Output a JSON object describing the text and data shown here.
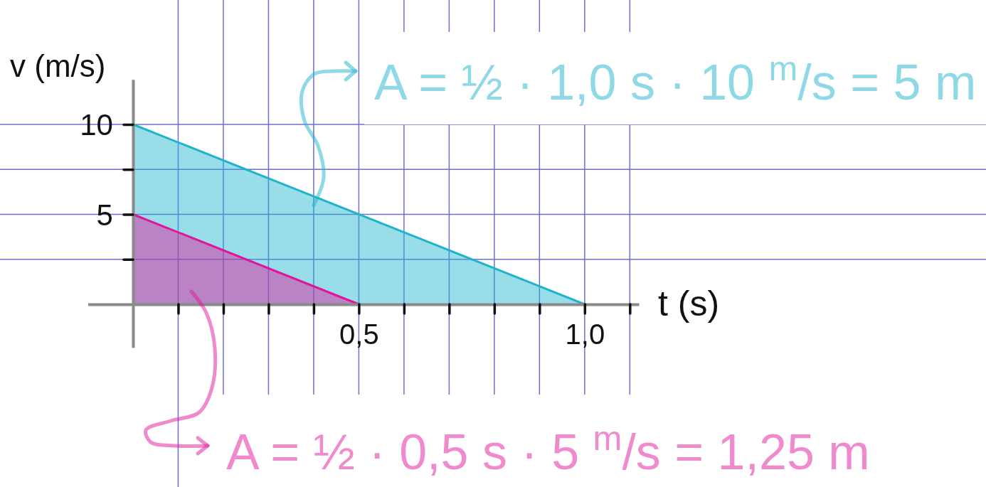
{
  "chart_data": {
    "type": "area",
    "xlabel": "t (s)",
    "ylabel": "v (m/s)",
    "xlim": [
      -0.1,
      1.12
    ],
    "ylim": [
      -2.4,
      12.5
    ],
    "xticks": [
      {
        "value": 0.1,
        "label": null
      },
      {
        "value": 0.2,
        "label": null
      },
      {
        "value": 0.3,
        "label": null
      },
      {
        "value": 0.4,
        "label": null
      },
      {
        "value": 0.5,
        "label": "0,5"
      },
      {
        "value": 0.6,
        "label": null
      },
      {
        "value": 0.7,
        "label": null
      },
      {
        "value": 0.8,
        "label": null
      },
      {
        "value": 0.9,
        "label": null
      },
      {
        "value": 1.0,
        "label": "1,0"
      },
      {
        "value": 1.1,
        "label": null
      }
    ],
    "yticks": [
      {
        "value": 2.5,
        "label": null
      },
      5,
      {
        "value": 7.5,
        "label": null
      },
      10
    ],
    "grid": true,
    "series": [
      {
        "color": "#1db4cc",
        "x": [
          0,
          1.0
        ],
        "values": [
          10,
          0
        ]
      },
      {
        "color": "#e0169a",
        "x": [
          0,
          0.5
        ],
        "values": [
          5,
          0
        ]
      }
    ],
    "annotations": [
      "A = ½ · 1,0 s · 10 $^{m}$/s = 5 m",
      "A = ½ · 0,5 s · 5 $^{m}$/s = 1,25 m"
    ]
  }
}
